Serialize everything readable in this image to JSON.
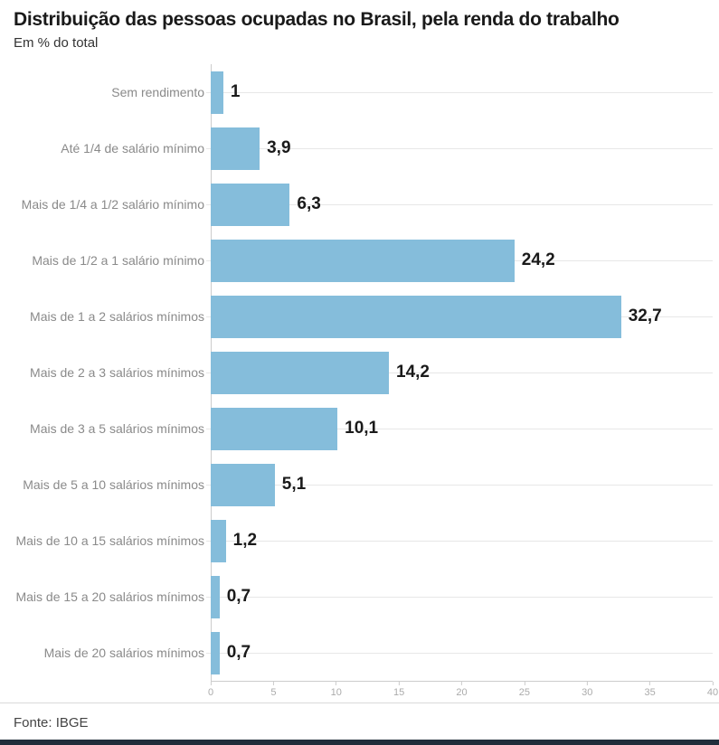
{
  "header": {
    "title": "Distribuição das pessoas ocupadas no Brasil, pela renda do trabalho",
    "subtitle": "Em % do total"
  },
  "footer": {
    "source": "Fonte: IBGE"
  },
  "chart_data": {
    "type": "bar",
    "orientation": "horizontal",
    "title": "Distribuição das pessoas ocupadas no Brasil, pela renda do trabalho",
    "subtitle": "Em % do total",
    "categories": [
      "Sem rendimento",
      "Até 1/4 de salário mínimo",
      "Mais de 1/4 a 1/2 salário mínimo",
      "Mais de 1/2 a 1 salário mínimo",
      "Mais de 1 a 2 salários mínimos",
      "Mais de 2 a 3 salários mínimos",
      "Mais de 3 a 5 salários mínimos",
      "Mais de 5 a 10 salários mínimos",
      "Mais de 10 a 15 salários mínimos",
      "Mais de 15 a 20 salários mínimos",
      "Mais de 20 salários mínimos"
    ],
    "values": [
      1,
      3.9,
      6.3,
      24.2,
      32.7,
      14.2,
      10.1,
      5.1,
      1.2,
      0.7,
      0.7
    ],
    "value_labels": [
      "1",
      "3,9",
      "6,3",
      "24,2",
      "32,7",
      "14,2",
      "10,1",
      "5,1",
      "1,2",
      "0,7",
      "0,7"
    ],
    "xlabel": "",
    "ylabel": "",
    "xlim": [
      0,
      40
    ],
    "x_ticks": [
      0,
      5,
      10,
      15,
      20,
      25,
      30,
      35,
      40
    ],
    "x_tick_labels": [
      "0",
      "5",
      "10",
      "15",
      "20",
      "25",
      "30",
      "35",
      "40"
    ],
    "grid": true,
    "legend": false,
    "bar_color": "#85BDDB"
  },
  "colors": {
    "title": "#1a1a1a",
    "subtitle": "#333333",
    "bar": "#85BDDB",
    "grid": "#e7e7e7",
    "grid2": "#d9d9d9",
    "axis": "#cccccc",
    "tick": "#ababab",
    "cat": "#8a8a8a",
    "val": "#1a1a1a",
    "source": "#444444",
    "bottom": "#212d3b"
  }
}
